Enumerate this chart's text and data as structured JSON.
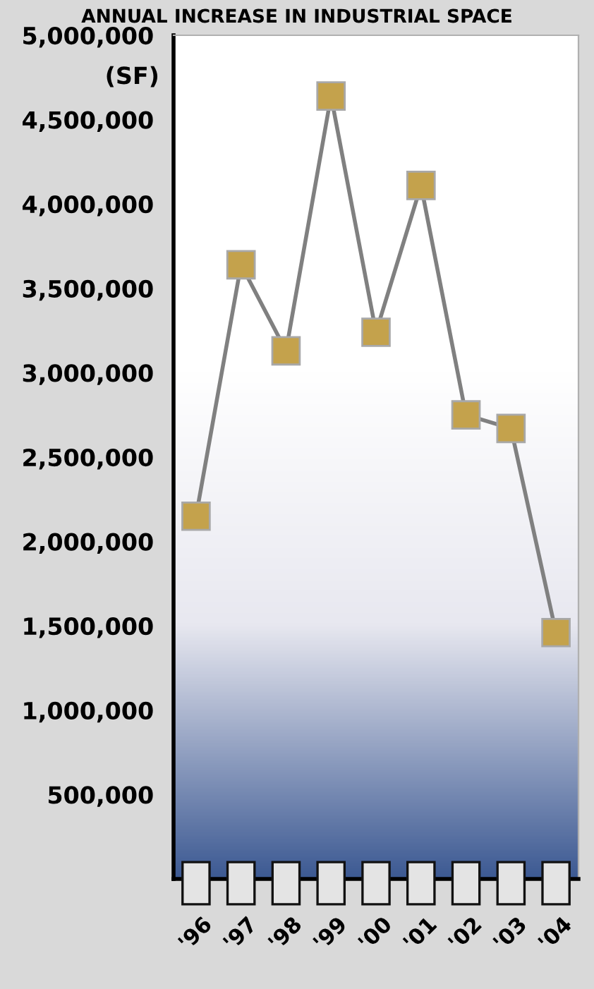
{
  "chart_data": {
    "type": "line",
    "title": "ANNUAL INCREASE IN INDUSTRIAL SPACE",
    "ylabel": "(SF)",
    "categories": [
      "'96",
      "'97",
      "'98",
      "'99",
      "'00",
      "'01",
      "'02",
      "'03",
      "'04"
    ],
    "series": [
      {
        "color": "#808080",
        "values": [
          2150000,
          3640000,
          3130000,
          4640000,
          3240000,
          4110000,
          2750000,
          2670000,
          1460000
        ]
      }
    ],
    "marker": "square",
    "line_style": "solid",
    "grid": false,
    "legend": false,
    "ylim": [
      0,
      5000000
    ],
    "yticks": [
      {
        "value": 500000,
        "label": "500,000"
      },
      {
        "value": 1000000,
        "label": "1,000,000"
      },
      {
        "value": 1500000,
        "label": "1,500,000"
      },
      {
        "value": 2000000,
        "label": "2,000,000"
      },
      {
        "value": 2500000,
        "label": "2,500,000"
      },
      {
        "value": 3000000,
        "label": "3,000,000"
      },
      {
        "value": 3500000,
        "label": "3,500,000"
      },
      {
        "value": 4000000,
        "label": "4,000,000"
      },
      {
        "value": 4500000,
        "label": "4,500,000"
      },
      {
        "value": 5000000,
        "label": "5,000,000"
      }
    ]
  }
}
